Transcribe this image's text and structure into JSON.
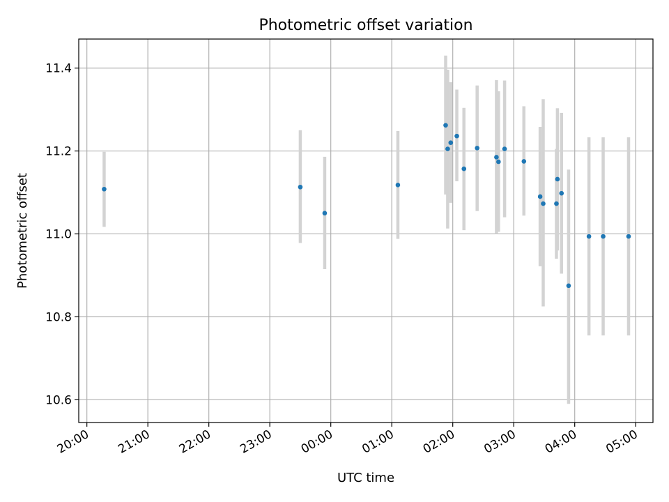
{
  "chart_data": {
    "type": "scatter",
    "title": "Photometric offset variation",
    "xlabel": "UTC time",
    "ylabel": "Photometric offset",
    "x_ticks": [
      "20:00",
      "21:00",
      "22:00",
      "23:00",
      "00:00",
      "01:00",
      "02:00",
      "03:00",
      "04:00",
      "05:00"
    ],
    "y_ticks": [
      "10.6",
      "10.8",
      "11.0",
      "11.2",
      "11.4"
    ],
    "xlim": [
      "19:52",
      "05:17"
    ],
    "ylim": [
      10.545,
      11.47
    ],
    "grid": true,
    "colors": {
      "points": "#1f77b4",
      "error_bars": "#d3d3d3",
      "grid": "#b0b0b0"
    },
    "series": [
      {
        "points": [
          {
            "x": "20:17",
            "y": 11.108,
            "ylow": 11.017,
            "yhigh": 11.198
          },
          {
            "x": "23:30",
            "y": 11.113,
            "ylow": 10.978,
            "yhigh": 11.25
          },
          {
            "x": "23:54",
            "y": 11.05,
            "ylow": 10.915,
            "yhigh": 11.186
          },
          {
            "x": "01:06",
            "y": 11.118,
            "ylow": 10.988,
            "yhigh": 11.248
          },
          {
            "x": "01:53",
            "y": 11.262,
            "ylow": 11.095,
            "yhigh": 11.43
          },
          {
            "x": "01:55",
            "y": 11.205,
            "ylow": 11.013,
            "yhigh": 11.396
          },
          {
            "x": "01:58",
            "y": 11.22,
            "ylow": 11.075,
            "yhigh": 11.366
          },
          {
            "x": "02:04",
            "y": 11.236,
            "ylow": 11.127,
            "yhigh": 11.348
          },
          {
            "x": "02:11",
            "y": 11.157,
            "ylow": 11.009,
            "yhigh": 11.304
          },
          {
            "x": "02:24",
            "y": 11.207,
            "ylow": 11.055,
            "yhigh": 11.358
          },
          {
            "x": "02:43",
            "y": 11.185,
            "ylow": 11.0,
            "yhigh": 11.371
          },
          {
            "x": "02:45",
            "y": 11.174,
            "ylow": 11.005,
            "yhigh": 11.344
          },
          {
            "x": "02:51",
            "y": 11.205,
            "ylow": 11.04,
            "yhigh": 11.37
          },
          {
            "x": "03:10",
            "y": 11.175,
            "ylow": 11.044,
            "yhigh": 11.308
          },
          {
            "x": "03:26",
            "y": 11.09,
            "ylow": 10.922,
            "yhigh": 11.258
          },
          {
            "x": "03:29",
            "y": 11.073,
            "ylow": 10.825,
            "yhigh": 11.325
          },
          {
            "x": "03:42",
            "y": 11.073,
            "ylow": 10.94,
            "yhigh": 11.205
          },
          {
            "x": "03:43",
            "y": 11.132,
            "ylow": 10.96,
            "yhigh": 11.303
          },
          {
            "x": "03:47",
            "y": 11.098,
            "ylow": 10.904,
            "yhigh": 11.292
          },
          {
            "x": "03:54",
            "y": 10.875,
            "ylow": 10.59,
            "yhigh": 11.155
          },
          {
            "x": "04:14",
            "y": 10.994,
            "ylow": 10.755,
            "yhigh": 11.233
          },
          {
            "x": "04:28",
            "y": 10.994,
            "ylow": 10.755,
            "yhigh": 11.233
          },
          {
            "x": "04:53",
            "y": 10.994,
            "ylow": 10.755,
            "yhigh": 11.233
          }
        ]
      }
    ]
  }
}
